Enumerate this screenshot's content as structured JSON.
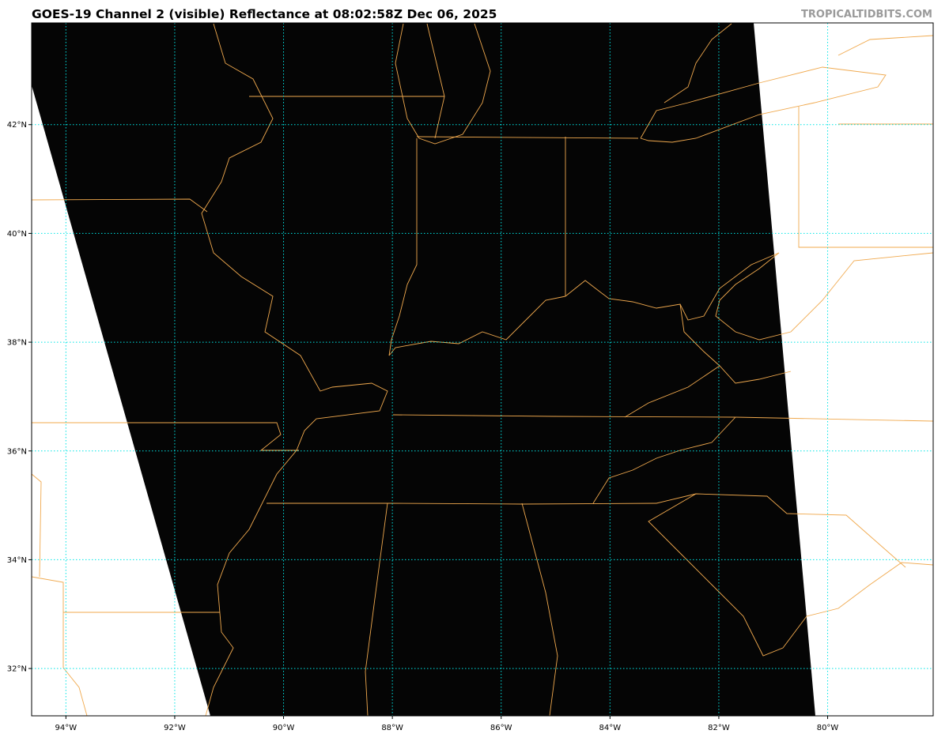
{
  "header": {
    "title": "GOES-19 Channel 2 (visible) Reflectance at 08:02:58Z Dec 06, 2025",
    "credit": "TROPICALTIDBITS.COM"
  },
  "map": {
    "projection": "plate carree",
    "lon_range": [
      -94.63,
      -78.06
    ],
    "lat_range": [
      31.13,
      43.87
    ],
    "lon_ticks": [
      {
        "value": -94,
        "label": "94°W"
      },
      {
        "value": -92,
        "label": "92°W"
      },
      {
        "value": -90,
        "label": "90°W"
      },
      {
        "value": -88,
        "label": "88°W"
      },
      {
        "value": -86,
        "label": "86°W"
      },
      {
        "value": -84,
        "label": "84°W"
      },
      {
        "value": -82,
        "label": "82°W"
      },
      {
        "value": -80,
        "label": "80°W"
      }
    ],
    "lat_ticks": [
      {
        "value": 42,
        "label": "42°N"
      },
      {
        "value": 40,
        "label": "40°N"
      },
      {
        "value": 38,
        "label": "38°N"
      },
      {
        "value": 36,
        "label": "36°N"
      },
      {
        "value": 34,
        "label": "34°N"
      },
      {
        "value": 32,
        "label": "32°N"
      }
    ],
    "colors": {
      "imagery": "#050505",
      "borders": "#f0a94e",
      "gridlines": "#00e5e5",
      "no_data": "#ffffff"
    }
  }
}
